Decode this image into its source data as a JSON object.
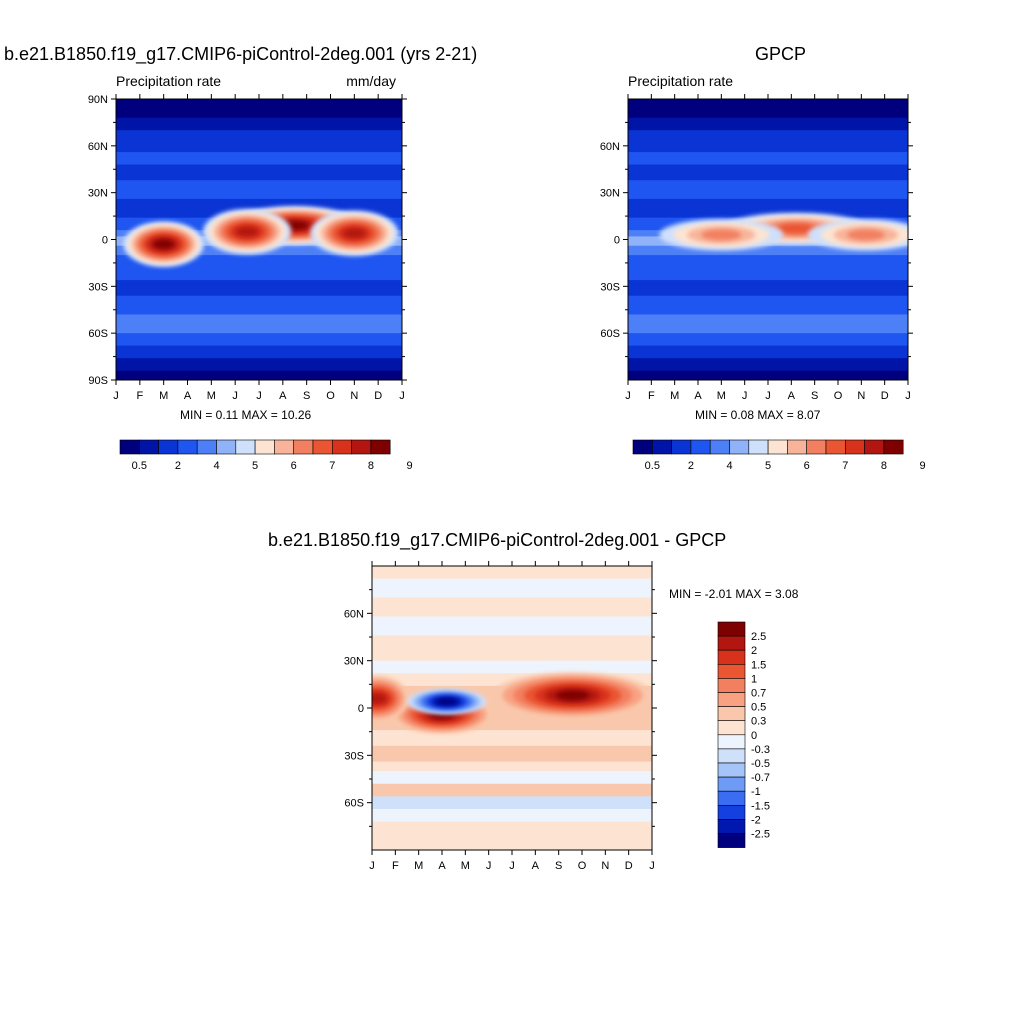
{
  "chart_data": [
    {
      "type": "heatmap",
      "title": "b.e21.B1850.f19_g17.CMIP6-piControl-2deg.001 (yrs 2-21)",
      "left_label": "Precipitation rate",
      "right_label": "mm/day",
      "x_ticks": [
        "J",
        "F",
        "M",
        "A",
        "M",
        "J",
        "J",
        "A",
        "S",
        "O",
        "N",
        "D",
        "J"
      ],
      "y_ticks": [
        "90N",
        "60N",
        "30N",
        "0",
        "30S",
        "60S",
        "90S"
      ],
      "ylim": [
        -90,
        90
      ],
      "stats": "MIN =   0.11 MAX =  10.26",
      "colorbar": {
        "orientation": "horizontal",
        "labels": [
          "0.5",
          "2",
          "4",
          "5",
          "6",
          "7",
          "8",
          "9"
        ],
        "colors": [
          "#00007f",
          "#0015a8",
          "#0a34d4",
          "#1f55f0",
          "#4d7ff7",
          "#8fb2f8",
          "#cfe0fb",
          "#fde4d2",
          "#f8b49a",
          "#f27f60",
          "#ea5532",
          "#d8321c",
          "#b31510",
          "#7f0000"
        ]
      },
      "blobs": [
        {
          "name": "positive-band-mar-apr",
          "t": 2.0,
          "lat": -3,
          "wt": 0.9,
          "wl": 6,
          "level": 1.0
        },
        {
          "name": "positive-band-aug-sep",
          "t": 7.5,
          "lat": 9,
          "wt": 1.6,
          "wl": 5,
          "level": 1.0
        },
        {
          "name": "positive-band-jun",
          "t": 5.5,
          "lat": 5,
          "wt": 1.0,
          "wl": 6,
          "level": 0.9
        },
        {
          "name": "positive-band-nov",
          "t": 10.0,
          "lat": 4,
          "wt": 1.0,
          "wl": 6,
          "level": 0.85
        }
      ]
    },
    {
      "type": "heatmap",
      "title": "GPCP",
      "left_label": "Precipitation rate",
      "right_label": "",
      "x_ticks": [
        "J",
        "F",
        "M",
        "A",
        "M",
        "J",
        "J",
        "A",
        "S",
        "O",
        "N",
        "D",
        "J"
      ],
      "y_ticks": [
        "60N",
        "30N",
        "0",
        "30S",
        "60S"
      ],
      "ylim": [
        -90,
        90
      ],
      "stats": "MIN =   0.08 MAX =   8.07",
      "colorbar": {
        "orientation": "horizontal",
        "labels": [
          "0.5",
          "2",
          "4",
          "5",
          "6",
          "7",
          "8",
          "9"
        ],
        "colors": [
          "#00007f",
          "#0015a8",
          "#0a34d4",
          "#1f55f0",
          "#4d7ff7",
          "#8fb2f8",
          "#cfe0fb",
          "#fde4d2",
          "#f8b49a",
          "#f27f60",
          "#ea5532",
          "#d8321c",
          "#b31510",
          "#7f0000"
        ]
      },
      "blobs": [
        {
          "name": "positive-band-aug-sep",
          "t": 7.2,
          "lat": 7,
          "wt": 1.8,
          "wl": 4,
          "level": 0.85
        },
        {
          "name": "positive-band-may",
          "t": 4.0,
          "lat": 3,
          "wt": 1.5,
          "wl": 4,
          "level": 0.7
        },
        {
          "name": "positive-band-nov",
          "t": 10.2,
          "lat": 3,
          "wt": 1.4,
          "wl": 4,
          "level": 0.6
        }
      ]
    },
    {
      "type": "heatmap",
      "title": "b.e21.B1850.f19_g17.CMIP6-piControl-2deg.001 - GPCP",
      "x_ticks": [
        "J",
        "F",
        "M",
        "A",
        "M",
        "J",
        "J",
        "A",
        "S",
        "O",
        "N",
        "D",
        "J"
      ],
      "y_ticks": [
        "60N",
        "30N",
        "0",
        "30S",
        "60S"
      ],
      "ylim": [
        -90,
        90
      ],
      "stats": "MIN =  -2.01 MAX =   3.08",
      "colorbar": {
        "orientation": "vertical",
        "labels": [
          "2.5",
          "2",
          "1.5",
          "1",
          "0.7",
          "0.5",
          "0.3",
          "0",
          "-0.3",
          "-0.5",
          "-0.7",
          "-1",
          "-1.5",
          "-2",
          "-2.5"
        ],
        "colors": [
          "#7f0000",
          "#b31510",
          "#d8321c",
          "#ea5532",
          "#f27f60",
          "#f8a282",
          "#f9c8ac",
          "#fde4d2",
          "#eef4fd",
          "#cfe0fb",
          "#a5c4f8",
          "#6f9bf6",
          "#3b6df2",
          "#1440e0",
          "#0018b0",
          "#00007f"
        ]
      },
      "positive_blobs": [
        {
          "name": "positive-band-mar-apr",
          "t": 3.0,
          "lat": -4,
          "wt": 1.2,
          "wl": 5,
          "level": 1.0
        },
        {
          "name": "positive-band-jul-oct",
          "t": 8.6,
          "lat": 8,
          "wt": 2.0,
          "wl": 6,
          "level": 1.0
        },
        {
          "name": "positive-band-jan",
          "t": 0.2,
          "lat": 6,
          "wt": 0.7,
          "wl": 6,
          "level": 0.9
        }
      ],
      "negative_blobs": [
        {
          "name": "negative-blob-apr",
          "t": 3.2,
          "lat": 4,
          "wt": 0.9,
          "wl": 3,
          "level": 1.0
        }
      ]
    }
  ]
}
